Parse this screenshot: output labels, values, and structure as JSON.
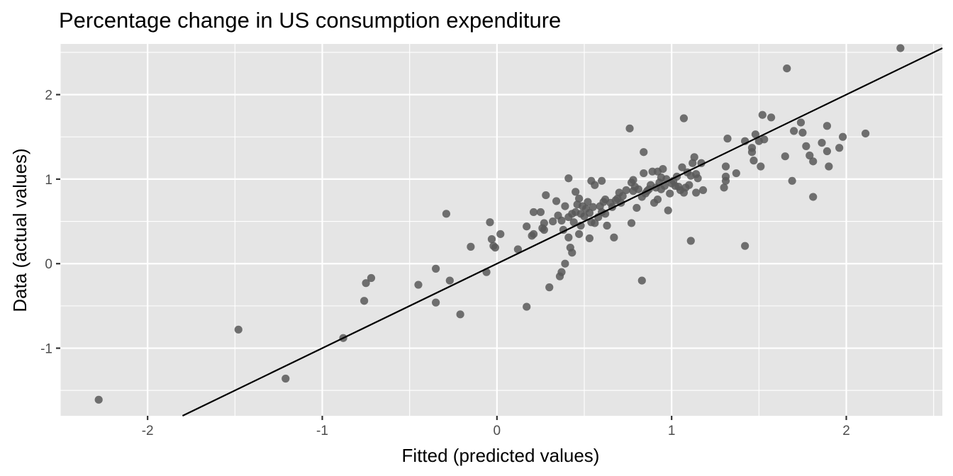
{
  "chart_data": {
    "type": "scatter",
    "title": "Percentage change in US consumption expenditure",
    "xlabel": "Fitted (predicted values)",
    "ylabel": "Data (actual values)",
    "xlim": [
      -2.5,
      2.55
    ],
    "ylim": [
      -1.8,
      2.6
    ],
    "xticks": [
      -2,
      -1,
      0,
      1,
      2
    ],
    "yticks": [
      -1,
      0,
      1,
      2
    ],
    "xtick_labels": [
      "-2",
      "-1",
      "0",
      "1",
      "2"
    ],
    "ytick_labels": [
      "-1",
      "0",
      "1",
      "2"
    ],
    "grid": true,
    "reference_line": {
      "slope": 1,
      "intercept": 0
    },
    "colors": {
      "panel": "#e5e5e5",
      "grid": "#ffffff",
      "point": "#595959",
      "line": "#000000",
      "tick_text": "#4d4d4d"
    },
    "points": [
      {
        "x": -2.28,
        "y": -1.61
      },
      {
        "x": -1.48,
        "y": -0.78
      },
      {
        "x": -1.21,
        "y": -1.36
      },
      {
        "x": -0.88,
        "y": -0.88
      },
      {
        "x": -0.76,
        "y": -0.44
      },
      {
        "x": -0.75,
        "y": -0.23
      },
      {
        "x": -0.72,
        "y": -0.17
      },
      {
        "x": -0.45,
        "y": -0.25
      },
      {
        "x": -0.35,
        "y": -0.06
      },
      {
        "x": -0.35,
        "y": -0.46
      },
      {
        "x": -0.29,
        "y": 0.59
      },
      {
        "x": -0.27,
        "y": -0.2
      },
      {
        "x": -0.21,
        "y": -0.6
      },
      {
        "x": -0.15,
        "y": 0.2
      },
      {
        "x": -0.06,
        "y": -0.1
      },
      {
        "x": -0.04,
        "y": 0.49
      },
      {
        "x": -0.03,
        "y": 0.29
      },
      {
        "x": -0.02,
        "y": 0.21
      },
      {
        "x": -0.01,
        "y": 0.19
      },
      {
        "x": 0.02,
        "y": 0.35
      },
      {
        "x": 0.12,
        "y": 0.17
      },
      {
        "x": 0.17,
        "y": 0.44
      },
      {
        "x": 0.17,
        "y": -0.51
      },
      {
        "x": 0.2,
        "y": 0.33
      },
      {
        "x": 0.21,
        "y": 0.61
      },
      {
        "x": 0.21,
        "y": 0.35
      },
      {
        "x": 0.25,
        "y": 0.61
      },
      {
        "x": 0.26,
        "y": 0.42
      },
      {
        "x": 0.27,
        "y": 0.48
      },
      {
        "x": 0.27,
        "y": 0.4
      },
      {
        "x": 0.28,
        "y": 0.81
      },
      {
        "x": 0.3,
        "y": -0.28
      },
      {
        "x": 0.32,
        "y": 0.5
      },
      {
        "x": 0.34,
        "y": 0.74
      },
      {
        "x": 0.35,
        "y": 0.57
      },
      {
        "x": 0.36,
        "y": -0.15
      },
      {
        "x": 0.37,
        "y": 0.51
      },
      {
        "x": 0.37,
        "y": -0.1
      },
      {
        "x": 0.38,
        "y": 0.4
      },
      {
        "x": 0.39,
        "y": 0.0
      },
      {
        "x": 0.39,
        "y": 0.68
      },
      {
        "x": 0.41,
        "y": 1.01
      },
      {
        "x": 0.41,
        "y": 0.55
      },
      {
        "x": 0.41,
        "y": 0.31
      },
      {
        "x": 0.42,
        "y": 0.19
      },
      {
        "x": 0.43,
        "y": 0.59
      },
      {
        "x": 0.43,
        "y": 0.13
      },
      {
        "x": 0.44,
        "y": 0.49
      },
      {
        "x": 0.45,
        "y": 0.85
      },
      {
        "x": 0.45,
        "y": 0.61
      },
      {
        "x": 0.46,
        "y": 0.7
      },
      {
        "x": 0.47,
        "y": 0.77
      },
      {
        "x": 0.47,
        "y": 0.35
      },
      {
        "x": 0.48,
        "y": 0.45
      },
      {
        "x": 0.48,
        "y": 0.59
      },
      {
        "x": 0.49,
        "y": 0.68
      },
      {
        "x": 0.5,
        "y": 0.56
      },
      {
        "x": 0.51,
        "y": 0.65
      },
      {
        "x": 0.52,
        "y": 0.73
      },
      {
        "x": 0.53,
        "y": 0.6
      },
      {
        "x": 0.53,
        "y": 0.3
      },
      {
        "x": 0.54,
        "y": 0.49
      },
      {
        "x": 0.54,
        "y": 0.98
      },
      {
        "x": 0.55,
        "y": 0.67
      },
      {
        "x": 0.56,
        "y": 0.48
      },
      {
        "x": 0.56,
        "y": 0.93
      },
      {
        "x": 0.58,
        "y": 0.55
      },
      {
        "x": 0.59,
        "y": 0.68
      },
      {
        "x": 0.6,
        "y": 0.98
      },
      {
        "x": 0.6,
        "y": 0.61
      },
      {
        "x": 0.61,
        "y": 0.73
      },
      {
        "x": 0.62,
        "y": 0.59
      },
      {
        "x": 0.62,
        "y": 0.76
      },
      {
        "x": 0.63,
        "y": 0.45
      },
      {
        "x": 0.65,
        "y": 0.72
      },
      {
        "x": 0.66,
        "y": 0.67
      },
      {
        "x": 0.67,
        "y": 0.31
      },
      {
        "x": 0.68,
        "y": 0.75
      },
      {
        "x": 0.69,
        "y": 0.77
      },
      {
        "x": 0.7,
        "y": 0.84
      },
      {
        "x": 0.71,
        "y": 0.72
      },
      {
        "x": 0.72,
        "y": 0.8
      },
      {
        "x": 0.74,
        "y": 0.87
      },
      {
        "x": 0.76,
        "y": 1.6
      },
      {
        "x": 0.77,
        "y": 0.48
      },
      {
        "x": 0.77,
        "y": 0.96
      },
      {
        "x": 0.78,
        "y": 0.86
      },
      {
        "x": 0.78,
        "y": 0.99
      },
      {
        "x": 0.79,
        "y": 0.91
      },
      {
        "x": 0.8,
        "y": 0.66
      },
      {
        "x": 0.81,
        "y": 0.88
      },
      {
        "x": 0.83,
        "y": -0.2
      },
      {
        "x": 0.83,
        "y": 0.79
      },
      {
        "x": 0.84,
        "y": 1.07
      },
      {
        "x": 0.84,
        "y": 1.32
      },
      {
        "x": 0.85,
        "y": 0.83
      },
      {
        "x": 0.86,
        "y": 0.86
      },
      {
        "x": 0.87,
        "y": 0.88
      },
      {
        "x": 0.88,
        "y": 0.93
      },
      {
        "x": 0.89,
        "y": 1.09
      },
      {
        "x": 0.9,
        "y": 0.72
      },
      {
        "x": 0.91,
        "y": 0.9
      },
      {
        "x": 0.92,
        "y": 0.76
      },
      {
        "x": 0.92,
        "y": 1.09
      },
      {
        "x": 0.93,
        "y": 0.96
      },
      {
        "x": 0.94,
        "y": 0.88
      },
      {
        "x": 0.94,
        "y": 1.02
      },
      {
        "x": 0.95,
        "y": 1.12
      },
      {
        "x": 0.96,
        "y": 0.92
      },
      {
        "x": 0.97,
        "y": 1.0
      },
      {
        "x": 0.98,
        "y": 0.63
      },
      {
        "x": 0.99,
        "y": 0.83
      },
      {
        "x": 1.0,
        "y": 0.95
      },
      {
        "x": 1.01,
        "y": 0.98
      },
      {
        "x": 1.02,
        "y": 0.92
      },
      {
        "x": 1.03,
        "y": 1.03
      },
      {
        "x": 1.04,
        "y": 0.91
      },
      {
        "x": 1.05,
        "y": 0.87
      },
      {
        "x": 1.06,
        "y": 1.14
      },
      {
        "x": 1.07,
        "y": 0.84
      },
      {
        "x": 1.07,
        "y": 1.72
      },
      {
        "x": 1.08,
        "y": 0.9
      },
      {
        "x": 1.09,
        "y": 1.08
      },
      {
        "x": 1.1,
        "y": 0.93
      },
      {
        "x": 1.11,
        "y": 0.27
      },
      {
        "x": 1.11,
        "y": 1.04
      },
      {
        "x": 1.12,
        "y": 1.19
      },
      {
        "x": 1.13,
        "y": 1.26
      },
      {
        "x": 1.14,
        "y": 0.84
      },
      {
        "x": 1.14,
        "y": 1.06
      },
      {
        "x": 1.15,
        "y": 1.01
      },
      {
        "x": 1.17,
        "y": 1.19
      },
      {
        "x": 1.18,
        "y": 0.87
      },
      {
        "x": 1.3,
        "y": 0.9
      },
      {
        "x": 1.31,
        "y": 1.15
      },
      {
        "x": 1.31,
        "y": 1.03
      },
      {
        "x": 1.31,
        "y": 0.98
      },
      {
        "x": 1.32,
        "y": 1.48
      },
      {
        "x": 1.37,
        "y": 1.07
      },
      {
        "x": 1.42,
        "y": 0.21
      },
      {
        "x": 1.42,
        "y": 1.45
      },
      {
        "x": 1.46,
        "y": 1.32
      },
      {
        "x": 1.46,
        "y": 1.37
      },
      {
        "x": 1.47,
        "y": 1.22
      },
      {
        "x": 1.48,
        "y": 1.53
      },
      {
        "x": 1.5,
        "y": 1.45
      },
      {
        "x": 1.51,
        "y": 1.15
      },
      {
        "x": 1.52,
        "y": 1.76
      },
      {
        "x": 1.53,
        "y": 1.47
      },
      {
        "x": 1.57,
        "y": 1.73
      },
      {
        "x": 1.65,
        "y": 1.27
      },
      {
        "x": 1.66,
        "y": 2.31
      },
      {
        "x": 1.69,
        "y": 0.98
      },
      {
        "x": 1.7,
        "y": 1.57
      },
      {
        "x": 1.74,
        "y": 1.67
      },
      {
        "x": 1.75,
        "y": 1.55
      },
      {
        "x": 1.77,
        "y": 1.39
      },
      {
        "x": 1.79,
        "y": 1.28
      },
      {
        "x": 1.81,
        "y": 0.79
      },
      {
        "x": 1.81,
        "y": 1.21
      },
      {
        "x": 1.86,
        "y": 1.43
      },
      {
        "x": 1.89,
        "y": 1.33
      },
      {
        "x": 1.89,
        "y": 1.63
      },
      {
        "x": 1.9,
        "y": 1.15
      },
      {
        "x": 1.96,
        "y": 1.37
      },
      {
        "x": 1.98,
        "y": 1.5
      },
      {
        "x": 2.11,
        "y": 1.54
      },
      {
        "x": 2.31,
        "y": 2.55
      }
    ]
  }
}
